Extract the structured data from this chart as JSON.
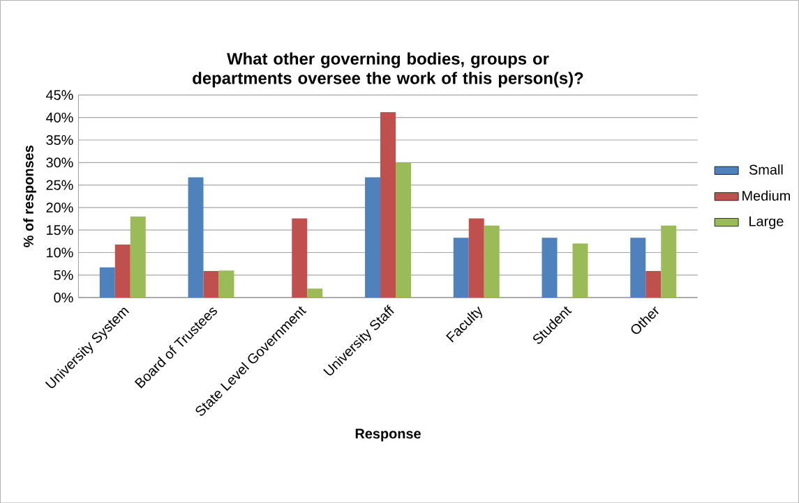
{
  "chart_data": {
    "type": "bar",
    "title": "What other governing bodies, groups or departments oversee the work of this person(s)?",
    "xlabel": "Response",
    "ylabel": "% of responses",
    "categories": [
      "University System",
      "Board of Trustees",
      "State Level Government",
      "University Staff",
      "Faculty",
      "Student",
      "Other"
    ],
    "series": [
      {
        "name": "Small",
        "color": "#4f81bd",
        "values": [
          6.7,
          26.7,
          0,
          26.7,
          13.3,
          13.3,
          13.3
        ]
      },
      {
        "name": "Medium",
        "color": "#c0504d",
        "values": [
          11.8,
          5.9,
          17.6,
          41.2,
          17.6,
          0,
          5.9
        ]
      },
      {
        "name": "Large",
        "color": "#9bbb59",
        "values": [
          18,
          6,
          2,
          30,
          16,
          12,
          16
        ]
      }
    ],
    "ylim": [
      0,
      45
    ],
    "yticks": [
      {
        "value": 0,
        "label": "0%"
      },
      {
        "value": 5,
        "label": "5%"
      },
      {
        "value": 10,
        "label": "10%"
      },
      {
        "value": 15,
        "label": "15%"
      },
      {
        "value": 20,
        "label": "20%"
      },
      {
        "value": 25,
        "label": "25%"
      },
      {
        "value": 30,
        "label": "30%"
      },
      {
        "value": 35,
        "label": "35%"
      },
      {
        "value": 40,
        "label": "40%"
      },
      {
        "value": 45,
        "label": "45%"
      }
    ],
    "grid": "y",
    "legend": "right"
  }
}
